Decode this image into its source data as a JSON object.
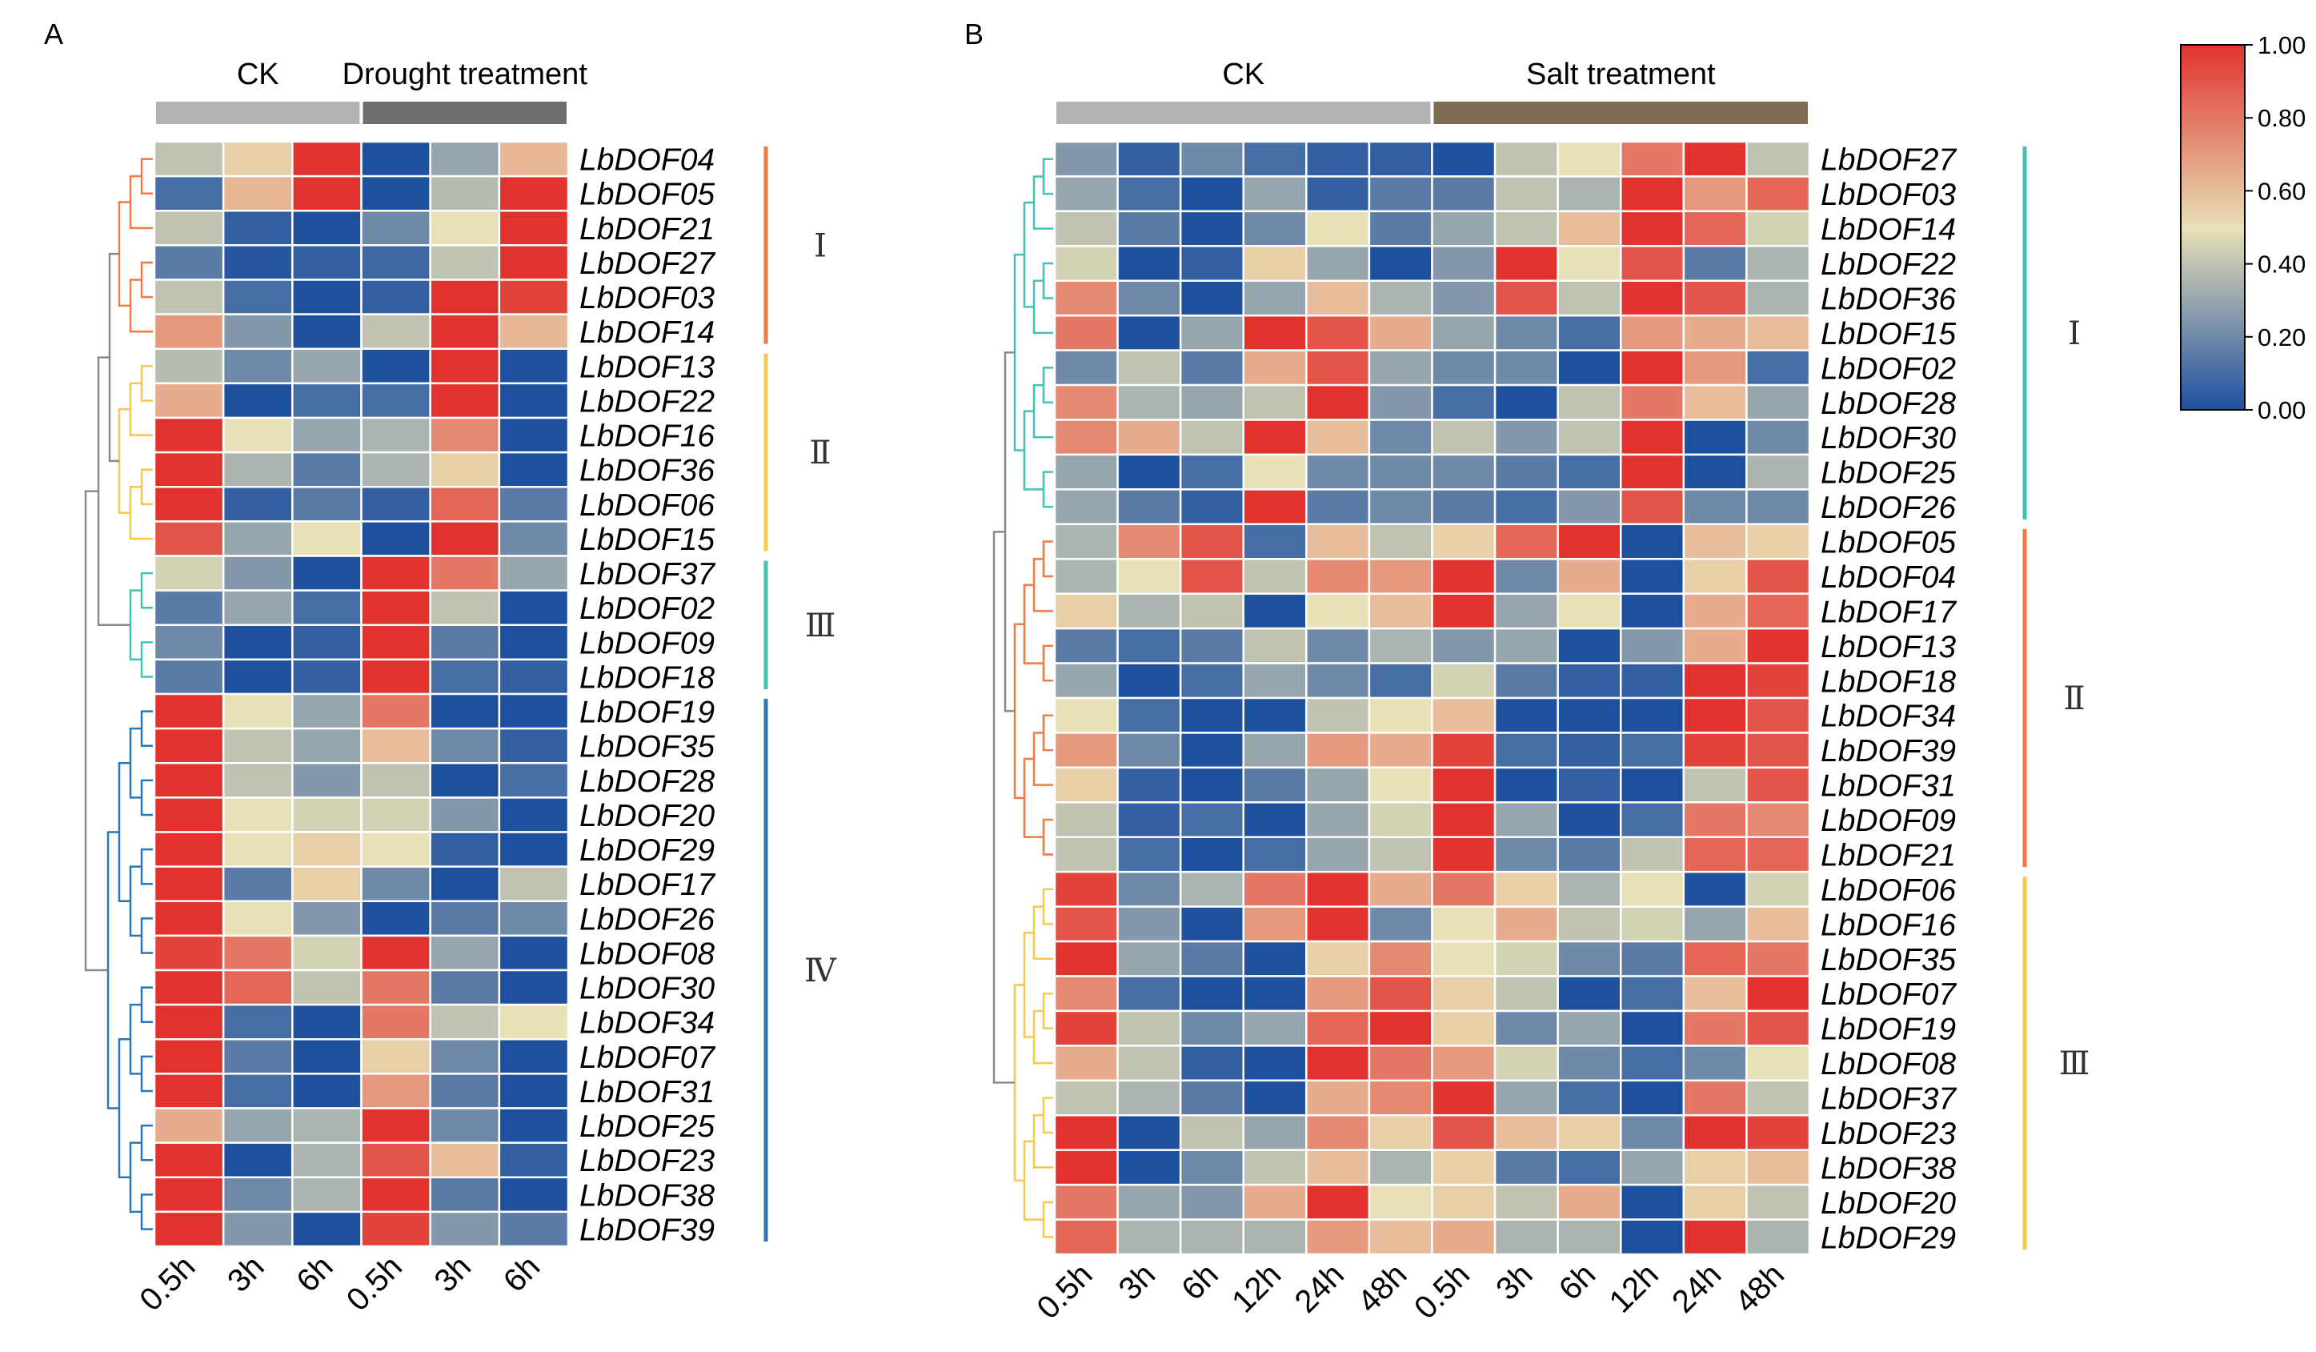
{
  "colors": {
    "low": "#1e50a0",
    "mid": "#e8e0b6",
    "high": "#e1322d",
    "group_ck": "#b3b3b3",
    "group_drought": "#6e6e6e",
    "group_salt": "#7e6b53",
    "clade_orange": "#f27a45",
    "clade_yellow": "#f7c84a",
    "clade_teal": "#40c2b4",
    "clade_blue": "#2a76b8",
    "root_gray": "#8a8a8a"
  },
  "colorbar": {
    "ticks": [
      "1.00",
      "0.80",
      "0.60",
      "0.40",
      "0.20",
      "0.00"
    ]
  },
  "chart_data": [
    {
      "type": "heatmap",
      "panel_label": "A",
      "group_labels": [
        "CK",
        "Drought treatment"
      ],
      "columns": [
        "0.5h",
        "3h",
        "6h",
        "0.5h",
        "3h",
        "6h"
      ],
      "rows": [
        "LbDOF04",
        "LbDOF05",
        "LbDOF21",
        "LbDOF27",
        "LbDOF03",
        "LbDOF14",
        "LbDOF13",
        "LbDOF22",
        "LbDOF16",
        "LbDOF36",
        "LbDOF06",
        "LbDOF15",
        "LbDOF37",
        "LbDOF02",
        "LbDOF09",
        "LbDOF18",
        "LbDOF19",
        "LbDOF35",
        "LbDOF28",
        "LbDOF20",
        "LbDOF29",
        "LbDOF17",
        "LbDOF26",
        "LbDOF08",
        "LbDOF30",
        "LbDOF34",
        "LbDOF07",
        "LbDOF31",
        "LbDOF25",
        "LbDOF23",
        "LbDOF38",
        "LbDOF39"
      ],
      "values": [
        [
          0.4,
          0.55,
          1.0,
          0.0,
          0.3,
          0.62
        ],
        [
          0.1,
          0.62,
          1.0,
          0.0,
          0.38,
          1.0
        ],
        [
          0.4,
          0.05,
          0.0,
          0.2,
          0.5,
          1.0
        ],
        [
          0.15,
          0.02,
          0.05,
          0.08,
          0.4,
          1.0
        ],
        [
          0.4,
          0.1,
          0.0,
          0.05,
          1.0,
          0.95
        ],
        [
          0.7,
          0.25,
          0.0,
          0.4,
          1.0,
          0.62
        ],
        [
          0.38,
          0.2,
          0.3,
          0.0,
          1.0,
          0.0
        ],
        [
          0.65,
          0.0,
          0.1,
          0.1,
          1.0,
          0.0
        ],
        [
          1.0,
          0.5,
          0.3,
          0.35,
          0.75,
          0.0
        ],
        [
          1.0,
          0.35,
          0.15,
          0.35,
          0.55,
          0.0
        ],
        [
          1.0,
          0.05,
          0.15,
          0.05,
          0.85,
          0.15
        ],
        [
          0.9,
          0.3,
          0.5,
          0.0,
          1.0,
          0.2
        ],
        [
          0.45,
          0.25,
          0.0,
          1.0,
          0.8,
          0.3
        ],
        [
          0.15,
          0.3,
          0.1,
          1.0,
          0.4,
          0.0
        ],
        [
          0.2,
          0.0,
          0.05,
          1.0,
          0.15,
          0.0
        ],
        [
          0.15,
          0.0,
          0.05,
          1.0,
          0.1,
          0.05
        ],
        [
          1.0,
          0.5,
          0.3,
          0.8,
          0.0,
          0.0
        ],
        [
          1.0,
          0.4,
          0.3,
          0.6,
          0.2,
          0.05
        ],
        [
          1.0,
          0.4,
          0.25,
          0.4,
          0.0,
          0.1
        ],
        [
          1.0,
          0.5,
          0.45,
          0.45,
          0.25,
          0.0
        ],
        [
          1.0,
          0.5,
          0.55,
          0.5,
          0.05,
          0.0
        ],
        [
          1.0,
          0.15,
          0.55,
          0.2,
          0.0,
          0.4
        ],
        [
          1.0,
          0.5,
          0.25,
          0.0,
          0.15,
          0.2
        ],
        [
          0.95,
          0.8,
          0.45,
          1.0,
          0.3,
          0.0
        ],
        [
          1.0,
          0.85,
          0.4,
          0.8,
          0.15,
          0.0
        ],
        [
          1.0,
          0.1,
          0.0,
          0.8,
          0.4,
          0.5
        ],
        [
          1.0,
          0.15,
          0.0,
          0.55,
          0.2,
          0.0
        ],
        [
          1.0,
          0.1,
          0.0,
          0.7,
          0.15,
          0.0
        ],
        [
          0.65,
          0.3,
          0.35,
          1.0,
          0.2,
          0.0
        ],
        [
          1.0,
          0.0,
          0.35,
          0.9,
          0.6,
          0.05
        ],
        [
          1.0,
          0.2,
          0.35,
          1.0,
          0.15,
          0.0
        ],
        [
          1.0,
          0.25,
          0.0,
          0.95,
          0.25,
          0.15
        ]
      ],
      "clades": [
        {
          "label": "Ⅰ",
          "rows": [
            0,
            5
          ],
          "color": "clade_orange"
        },
        {
          "label": "Ⅱ",
          "rows": [
            6,
            11
          ],
          "color": "clade_yellow"
        },
        {
          "label": "Ⅲ",
          "rows": [
            12,
            15
          ],
          "color": "clade_teal"
        },
        {
          "label": "Ⅳ",
          "rows": [
            16,
            31
          ],
          "color": "clade_blue"
        }
      ]
    },
    {
      "type": "heatmap",
      "panel_label": "B",
      "group_labels": [
        "CK",
        "Salt treatment"
      ],
      "columns": [
        "0.5h",
        "3h",
        "6h",
        "12h",
        "24h",
        "48h",
        "0.5h",
        "3h",
        "6h",
        "12h",
        "24h",
        "48h"
      ],
      "rows": [
        "LbDOF27",
        "LbDOF03",
        "LbDOF14",
        "LbDOF22",
        "LbDOF36",
        "LbDOF15",
        "LbDOF02",
        "LbDOF28",
        "LbDOF30",
        "LbDOF25",
        "LbDOF26",
        "LbDOF05",
        "LbDOF04",
        "LbDOF17",
        "LbDOF13",
        "LbDOF18",
        "LbDOF34",
        "LbDOF39",
        "LbDOF31",
        "LbDOF09",
        "LbDOF21",
        "LbDOF06",
        "LbDOF16",
        "LbDOF35",
        "LbDOF07",
        "LbDOF19",
        "LbDOF08",
        "LbDOF37",
        "LbDOF23",
        "LbDOF38",
        "LbDOF20",
        "LbDOF29"
      ],
      "values": [
        [
          0.25,
          0.05,
          0.2,
          0.1,
          0.05,
          0.05,
          0.0,
          0.4,
          0.5,
          0.8,
          1.0,
          0.4
        ],
        [
          0.3,
          0.1,
          0.0,
          0.3,
          0.05,
          0.15,
          0.15,
          0.4,
          0.35,
          1.0,
          0.7,
          0.85
        ],
        [
          0.4,
          0.15,
          0.0,
          0.2,
          0.5,
          0.15,
          0.3,
          0.4,
          0.6,
          1.0,
          0.85,
          0.45
        ],
        [
          0.45,
          0.0,
          0.05,
          0.55,
          0.3,
          0.0,
          0.25,
          1.0,
          0.5,
          0.9,
          0.15,
          0.35
        ],
        [
          0.75,
          0.2,
          0.0,
          0.3,
          0.6,
          0.35,
          0.25,
          0.9,
          0.4,
          1.0,
          0.9,
          0.35
        ],
        [
          0.8,
          0.0,
          0.3,
          1.0,
          0.9,
          0.65,
          0.3,
          0.2,
          0.1,
          0.7,
          0.65,
          0.6
        ],
        [
          0.2,
          0.4,
          0.15,
          0.65,
          0.9,
          0.3,
          0.2,
          0.2,
          0.0,
          1.0,
          0.7,
          0.1
        ],
        [
          0.75,
          0.35,
          0.3,
          0.4,
          1.0,
          0.25,
          0.1,
          0.0,
          0.4,
          0.8,
          0.6,
          0.3
        ],
        [
          0.75,
          0.65,
          0.4,
          1.0,
          0.6,
          0.2,
          0.4,
          0.25,
          0.4,
          1.0,
          0.0,
          0.2
        ],
        [
          0.3,
          0.0,
          0.1,
          0.5,
          0.2,
          0.2,
          0.2,
          0.15,
          0.1,
          1.0,
          0.0,
          0.35
        ],
        [
          0.3,
          0.15,
          0.05,
          1.0,
          0.15,
          0.2,
          0.15,
          0.1,
          0.25,
          0.9,
          0.2,
          0.2
        ],
        [
          0.35,
          0.75,
          0.9,
          0.1,
          0.6,
          0.4,
          0.55,
          0.85,
          1.0,
          0.0,
          0.6,
          0.55
        ],
        [
          0.35,
          0.5,
          0.9,
          0.4,
          0.75,
          0.7,
          1.0,
          0.2,
          0.65,
          0.0,
          0.55,
          0.9
        ],
        [
          0.55,
          0.35,
          0.4,
          0.0,
          0.5,
          0.6,
          1.0,
          0.3,
          0.5,
          0.0,
          0.65,
          0.85
        ],
        [
          0.15,
          0.1,
          0.15,
          0.4,
          0.2,
          0.35,
          0.25,
          0.3,
          0.0,
          0.25,
          0.65,
          1.0
        ],
        [
          0.3,
          0.0,
          0.1,
          0.3,
          0.2,
          0.1,
          0.45,
          0.15,
          0.05,
          0.05,
          1.0,
          0.95
        ],
        [
          0.5,
          0.1,
          0.0,
          0.0,
          0.4,
          0.5,
          0.6,
          0.0,
          0.0,
          0.0,
          1.0,
          0.9
        ],
        [
          0.7,
          0.2,
          0.0,
          0.3,
          0.7,
          0.65,
          0.95,
          0.1,
          0.05,
          0.1,
          0.95,
          0.9
        ],
        [
          0.55,
          0.05,
          0.0,
          0.15,
          0.3,
          0.5,
          1.0,
          0.0,
          0.05,
          0.0,
          0.4,
          0.9
        ],
        [
          0.4,
          0.05,
          0.1,
          0.0,
          0.3,
          0.45,
          1.0,
          0.3,
          0.0,
          0.1,
          0.8,
          0.75
        ],
        [
          0.4,
          0.1,
          0.0,
          0.1,
          0.3,
          0.4,
          1.0,
          0.2,
          0.15,
          0.4,
          0.85,
          0.85
        ],
        [
          0.95,
          0.2,
          0.35,
          0.8,
          1.0,
          0.65,
          0.8,
          0.55,
          0.35,
          0.5,
          0.0,
          0.45
        ],
        [
          0.9,
          0.25,
          0.0,
          0.7,
          1.0,
          0.2,
          0.5,
          0.65,
          0.4,
          0.45,
          0.3,
          0.6
        ],
        [
          1.0,
          0.3,
          0.15,
          0.0,
          0.55,
          0.75,
          0.5,
          0.45,
          0.2,
          0.15,
          0.85,
          0.8
        ],
        [
          0.75,
          0.1,
          0.0,
          0.0,
          0.7,
          0.9,
          0.55,
          0.4,
          0.0,
          0.1,
          0.6,
          1.0
        ],
        [
          0.95,
          0.4,
          0.2,
          0.3,
          0.85,
          1.0,
          0.55,
          0.2,
          0.3,
          0.0,
          0.8,
          0.9
        ],
        [
          0.65,
          0.4,
          0.05,
          0.0,
          1.0,
          0.8,
          0.7,
          0.45,
          0.2,
          0.1,
          0.2,
          0.5
        ],
        [
          0.4,
          0.35,
          0.15,
          0.0,
          0.65,
          0.75,
          1.0,
          0.3,
          0.1,
          0.0,
          0.8,
          0.4
        ],
        [
          1.0,
          0.0,
          0.4,
          0.3,
          0.75,
          0.55,
          0.9,
          0.6,
          0.55,
          0.2,
          1.0,
          0.95
        ],
        [
          1.0,
          0.0,
          0.2,
          0.4,
          0.6,
          0.35,
          0.55,
          0.15,
          0.1,
          0.3,
          0.55,
          0.6
        ],
        [
          0.8,
          0.3,
          0.25,
          0.65,
          1.0,
          0.5,
          0.55,
          0.4,
          0.65,
          0.0,
          0.55,
          0.4
        ],
        [
          0.85,
          0.35,
          0.35,
          0.35,
          0.7,
          0.6,
          0.65,
          0.35,
          0.35,
          0.0,
          1.0,
          0.35
        ]
      ],
      "clades": [
        {
          "label": "Ⅰ",
          "rows": [
            0,
            10
          ],
          "color": "clade_teal"
        },
        {
          "label": "Ⅱ",
          "rows": [
            11,
            20
          ],
          "color": "clade_orange"
        },
        {
          "label": "Ⅲ",
          "rows": [
            21,
            31
          ],
          "color": "clade_yellow"
        }
      ]
    }
  ]
}
